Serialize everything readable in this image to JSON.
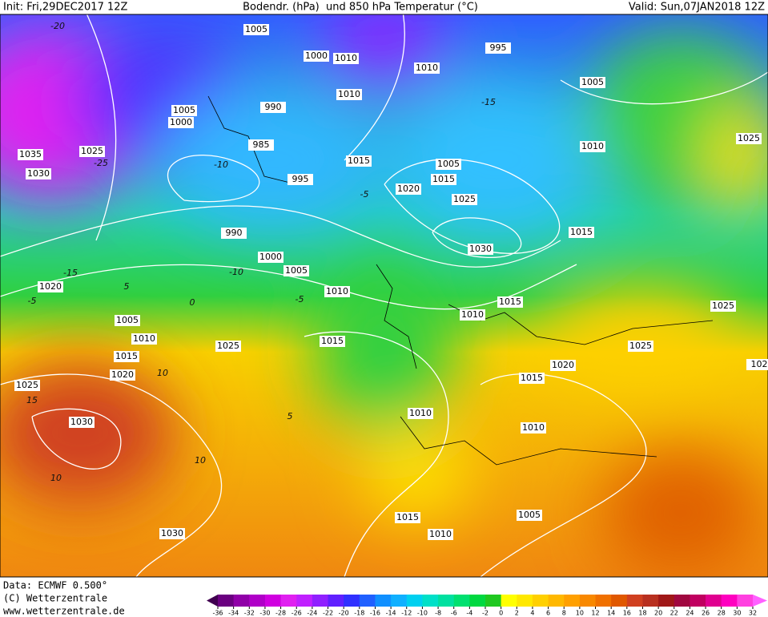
{
  "header": {
    "init": "Init: Fri,29DEC2017 12Z",
    "title": "Bodendr. (hPa)  und 850 hPa Temperatur (°C)",
    "valid": "Valid: Sun,07JAN2018 12Z"
  },
  "footer": {
    "data": "Data: ECMWF  0.500°",
    "copyright": "(C) Wetterzentrale",
    "url": "www.wetterzentrale.de"
  },
  "colorbar": {
    "ticks": [
      -36,
      -34,
      -32,
      -30,
      -28,
      -26,
      -24,
      -22,
      -20,
      -18,
      -16,
      -14,
      -12,
      -10,
      -8,
      -6,
      -4,
      -2,
      0,
      2,
      4,
      6,
      8,
      10,
      12,
      14,
      16,
      18,
      20,
      22,
      24,
      26,
      28,
      30,
      32
    ],
    "colors": [
      "#400050",
      "#6a0080",
      "#9000a8",
      "#b000c8",
      "#d000e0",
      "#e020f0",
      "#c020ff",
      "#9020ff",
      "#6020ff",
      "#3030ff",
      "#2060ff",
      "#1090ff",
      "#10b0ff",
      "#00d0f0",
      "#00e0c8",
      "#00e0a0",
      "#00e070",
      "#00d840",
      "#20c820",
      "#ffff00",
      "#ffe800",
      "#ffd000",
      "#ffb800",
      "#ffa000",
      "#f88800",
      "#f07000",
      "#e05800",
      "#d04020",
      "#b83020",
      "#a01818",
      "#a00840",
      "#c00060",
      "#e00090",
      "#ff00c0",
      "#ff40e0",
      "#ff60ff"
    ]
  },
  "isobar_labels": [
    1005,
    1000,
    1010,
    995,
    1010,
    1010,
    1005,
    1005,
    1000,
    990,
    985,
    1035,
    1025,
    1030,
    995,
    1015,
    1005,
    1015,
    1020,
    1025,
    1010,
    1025,
    990,
    1000,
    1005,
    1015,
    1030,
    1010,
    1020,
    1015,
    1010,
    1025,
    1005,
    1010,
    1015,
    1025,
    1015,
    1025,
    1020,
    1020,
    1015,
    1025,
    1030,
    1010,
    1010,
    1030,
    1015,
    1005,
    1010,
    102
  ],
  "temperature_labels": [
    -20,
    -25,
    -15,
    -10,
    -5,
    -5,
    5,
    0,
    10,
    15,
    10,
    10,
    5,
    -15,
    -10,
    -5
  ]
}
